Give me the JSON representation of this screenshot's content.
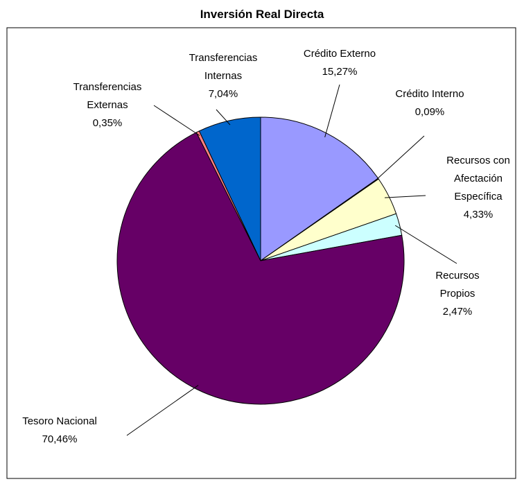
{
  "chart_data": {
    "type": "pie",
    "title": "Inversión Real Directa",
    "categories": [
      "Crédito Externo",
      "Crédito Interno",
      "Recursos con Afectación Específica",
      "Recursos Propios",
      "Tesoro Nacional",
      "Transferencias Externas",
      "Transferencias Internas"
    ],
    "values": [
      15.27,
      0.09,
      4.33,
      2.47,
      70.46,
      0.35,
      7.04
    ],
    "value_labels": [
      "15,27%",
      "0,09%",
      "4,33%",
      "2,47%",
      "70,46%",
      "0,35%",
      "7,04%"
    ],
    "colors": [
      "#9999ff",
      "#993366",
      "#ffffcc",
      "#ccffff",
      "#660066",
      "#ff8080",
      "#0066cc"
    ]
  }
}
